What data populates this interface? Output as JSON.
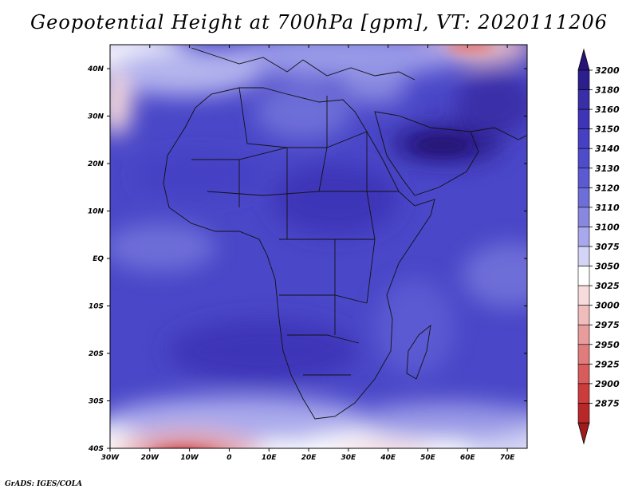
{
  "title": "Geopotential Height at 700hPa [gpm], VT: 2020111206",
  "credit": "GrADS: IGES/COLA",
  "colorbar": {
    "levels": [
      {
        "label": "3200",
        "color": "#2c1e8c"
      },
      {
        "label": "3180",
        "color": "#3a2ea8"
      },
      {
        "label": "3160",
        "color": "#3d34b8"
      },
      {
        "label": "3150",
        "color": "#4540c4"
      },
      {
        "label": "3140",
        "color": "#4f4ccc"
      },
      {
        "label": "3130",
        "color": "#5c5ad2"
      },
      {
        "label": "3120",
        "color": "#6e6ed8"
      },
      {
        "label": "3110",
        "color": "#8888e0"
      },
      {
        "label": "3100",
        "color": "#a8a8ec"
      },
      {
        "label": "3075",
        "color": "#d4d4f6"
      },
      {
        "label": "3050",
        "color": "#ffffff"
      },
      {
        "label": "3025",
        "color": "#f8dcdc"
      },
      {
        "label": "3000",
        "color": "#f0bcbc"
      },
      {
        "label": "2975",
        "color": "#e89c9c"
      },
      {
        "label": "2950",
        "color": "#e07c7c"
      },
      {
        "label": "2925",
        "color": "#d85c5c"
      },
      {
        "label": "2900",
        "color": "#cc3c3c"
      },
      {
        "label": "2875",
        "color": "#b82828"
      }
    ],
    "top_arrow_color": "#281478",
    "bottom_arrow_color": "#a01c1c"
  },
  "axes": {
    "lon_labels": [
      "30W",
      "20W",
      "10W",
      "0",
      "10E",
      "20E",
      "30E",
      "40E",
      "50E",
      "60E",
      "70E"
    ],
    "lat_labels": [
      "40N",
      "30N",
      "20N",
      "10N",
      "EQ",
      "10S",
      "20S",
      "30S",
      "40S"
    ]
  }
}
